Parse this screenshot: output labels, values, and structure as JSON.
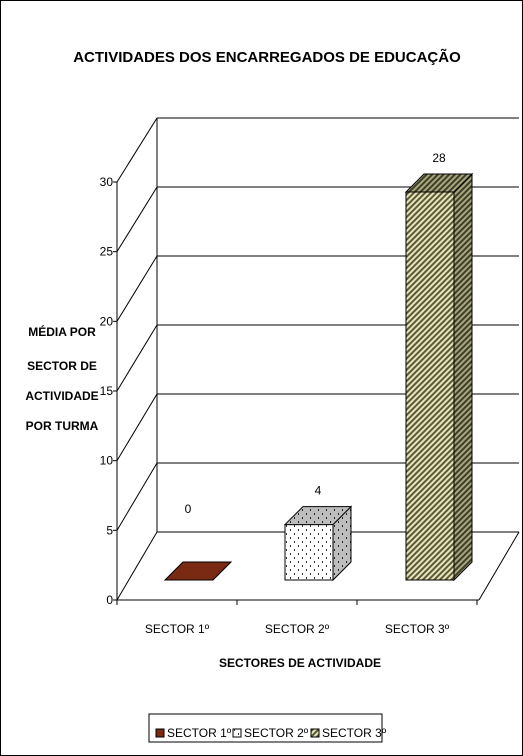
{
  "chart_data": {
    "type": "bar",
    "title": "ACTIVIDADES DOS ENCARREGADOS DE EDUCAÇÃO",
    "xlabel": "SECTORES DE ACTIVIDADE",
    "ylabel_lines": [
      "MÉDIA POR",
      "SECTOR DE",
      "ACTIVIDADE",
      "POR TURMA"
    ],
    "categories": [
      "SECTOR 1º",
      "SECTOR 2º",
      "SECTOR 3º"
    ],
    "values": [
      0,
      4,
      28
    ],
    "data_labels": [
      "0",
      "4",
      "28"
    ],
    "ylim": [
      0,
      30
    ],
    "yticks": [
      0,
      5,
      10,
      15,
      20,
      25,
      30
    ],
    "grid": true,
    "legend": {
      "placement": "bottom",
      "entries": [
        "SECTOR 1º",
        "SECTOR 2º",
        "SECTOR 3º"
      ]
    },
    "colors": [
      "#7a2a12",
      "#ffffff",
      "#d8d6a8"
    ]
  }
}
